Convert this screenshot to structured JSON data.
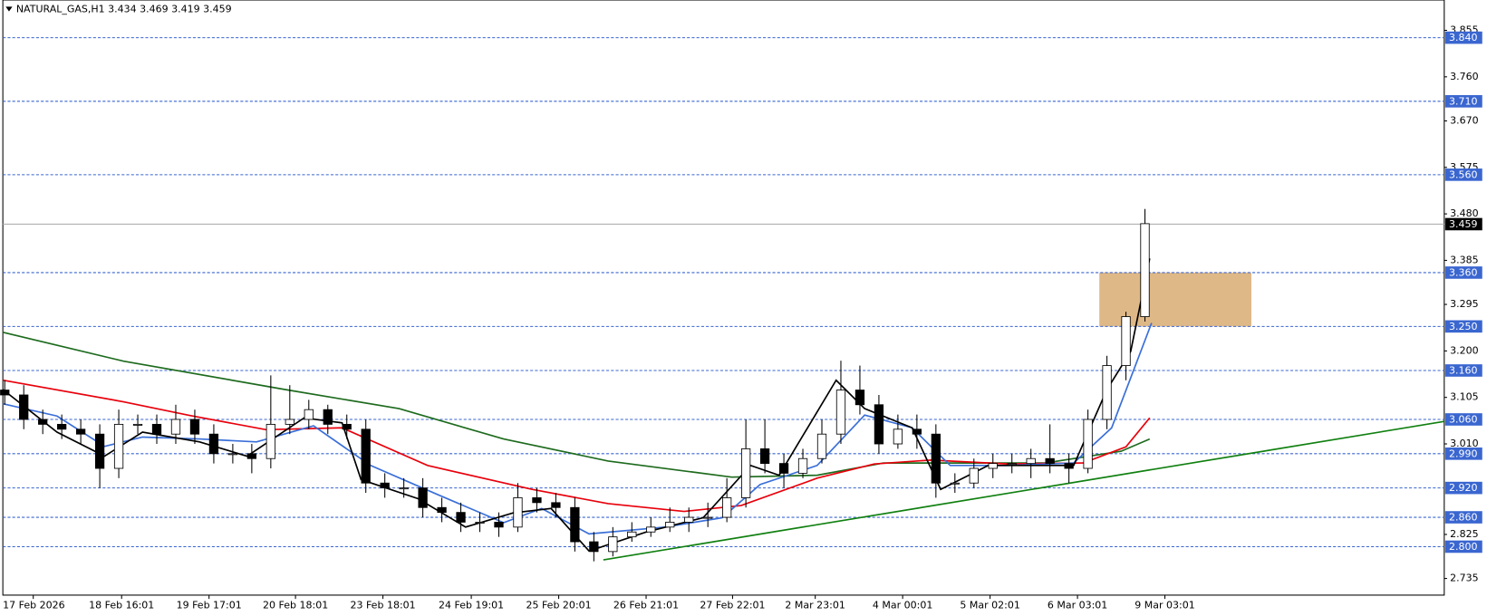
{
  "chart_data": {
    "type": "candlestick",
    "title": "NATURAL_GAS,H1  3.434 3.469 3.419 3.459",
    "xlim": [
      -0.1,
      75.75
    ],
    "ylim": [
      2.701,
      3.917
    ],
    "xticks": [
      {
        "value": 1.5,
        "label": "17 Feb 2026"
      },
      {
        "value": 6.15,
        "label": "18 Feb 16:01"
      },
      {
        "value": 10.75,
        "label": "19 Feb 17:01"
      },
      {
        "value": 15.3,
        "label": "20 Feb 18:01"
      },
      {
        "value": 19.9,
        "label": "23 Feb 18:01"
      },
      {
        "value": 24.55,
        "label": "24 Feb 19:01"
      },
      {
        "value": 29.15,
        "label": "25 Feb 20:01"
      },
      {
        "value": 33.75,
        "label": "26 Feb 21:01"
      },
      {
        "value": 38.3,
        "label": "27 Feb 22:01"
      },
      {
        "value": 42.65,
        "label": "2 Mar 23:01"
      },
      {
        "value": 47.25,
        "label": "4 Mar 00:01"
      },
      {
        "value": 51.85,
        "label": "5 Mar 02:01"
      },
      {
        "value": 56.45,
        "label": "6 Mar 03:01"
      },
      {
        "value": 61.05,
        "label": "9 Mar 03:01"
      }
    ],
    "yticks": [
      3.855,
      {
        "value": 3.76,
        "label": "3.760"
      },
      {
        "value": 3.67,
        "label": "3.670"
      },
      3.575,
      {
        "value": 3.48,
        "label": "3.480"
      },
      3.385,
      3.295,
      {
        "value": 3.2,
        "label": "3.200"
      },
      3.105,
      {
        "value": 3.01,
        "label": "3.010"
      },
      2.825,
      2.735
    ],
    "levels": [
      {
        "value": 3.84,
        "label": "3.840"
      },
      {
        "value": 3.71,
        "label": "3.710"
      },
      {
        "value": 3.56,
        "label": "3.560"
      },
      {
        "value": 3.36,
        "label": "3.360"
      },
      {
        "value": 3.25,
        "label": "3.250"
      },
      {
        "value": 3.16,
        "label": "3.160"
      },
      {
        "value": 3.06,
        "label": "3.060"
      },
      {
        "value": 2.99,
        "label": "2.990"
      },
      {
        "value": 2.92,
        "label": "2.920"
      },
      {
        "value": 2.86,
        "label": "2.860"
      },
      {
        "value": 2.8,
        "label": "2.800"
      }
    ],
    "level_color": "#3a66d0",
    "last_price": 3.459,
    "open": [
      3.12,
      3.11,
      3.06,
      3.05,
      3.04,
      3.03,
      2.96,
      3.05,
      3.05,
      3.03,
      3.06,
      3.03,
      2.99,
      2.99,
      2.98,
      3.05,
      3.06,
      3.08,
      3.05,
      3.04,
      2.93,
      2.92,
      2.92,
      2.88,
      2.87,
      2.85,
      2.85,
      2.84,
      2.9,
      2.89,
      2.88,
      2.81,
      2.79,
      2.82,
      2.83,
      2.84,
      2.85,
      2.86,
      2.86,
      2.9,
      3.0,
      2.97,
      2.95,
      2.98,
      3.03,
      3.12,
      3.09,
      3.01,
      3.04,
      3.03,
      2.93,
      2.93,
      2.96,
      2.97,
      2.97,
      2.98,
      2.97,
      2.96,
      3.06,
      3.17,
      3.27
    ],
    "high": [
      3.14,
      3.13,
      3.08,
      3.07,
      3.06,
      3.05,
      3.08,
      3.07,
      3.07,
      3.09,
      3.08,
      3.05,
      3.01,
      3.01,
      3.15,
      3.13,
      3.1,
      3.09,
      3.07,
      3.06,
      2.95,
      2.94,
      2.94,
      2.9,
      2.89,
      2.87,
      2.87,
      2.93,
      2.92,
      2.91,
      2.9,
      2.83,
      2.84,
      2.85,
      2.86,
      2.88,
      2.88,
      2.89,
      2.94,
      3.06,
      3.06,
      2.99,
      3.0,
      3.06,
      3.18,
      3.17,
      3.11,
      3.07,
      3.07,
      3.05,
      2.95,
      2.98,
      2.99,
      2.99,
      3.0,
      3.05,
      2.99,
      3.08,
      3.19,
      3.28,
      3.49
    ],
    "low": [
      3.09,
      3.04,
      3.03,
      3.02,
      3.01,
      2.92,
      2.94,
      3.03,
      3.01,
      3.01,
      3.01,
      2.97,
      2.97,
      2.95,
      2.96,
      3.03,
      3.04,
      3.03,
      3.02,
      2.91,
      2.9,
      2.9,
      2.86,
      2.85,
      2.83,
      2.83,
      2.82,
      2.83,
      2.87,
      2.86,
      2.79,
      2.77,
      2.78,
      2.81,
      2.82,
      2.83,
      2.83,
      2.84,
      2.85,
      2.88,
      2.95,
      2.92,
      2.94,
      2.97,
      3.01,
      3.07,
      2.99,
      3.0,
      3.0,
      2.9,
      2.91,
      2.92,
      2.94,
      2.95,
      2.94,
      2.95,
      2.93,
      2.95,
      3.04,
      3.14,
      3.26
    ],
    "close": [
      3.11,
      3.06,
      3.05,
      3.04,
      3.03,
      2.96,
      3.05,
      3.05,
      3.03,
      3.06,
      3.03,
      2.99,
      2.99,
      2.98,
      3.05,
      3.06,
      3.08,
      3.05,
      3.04,
      2.93,
      2.92,
      2.92,
      2.88,
      2.87,
      2.85,
      2.85,
      2.84,
      2.9,
      2.89,
      2.88,
      2.81,
      2.79,
      2.82,
      2.83,
      2.84,
      2.85,
      2.86,
      2.86,
      2.9,
      3.0,
      2.97,
      2.95,
      2.98,
      3.03,
      3.12,
      3.09,
      3.01,
      3.04,
      3.03,
      2.93,
      2.93,
      2.96,
      2.97,
      2.97,
      2.98,
      2.97,
      2.96,
      3.06,
      3.17,
      3.27,
      3.46
    ],
    "zone": {
      "xlim": [
        57.6,
        65.6
      ],
      "ylim": [
        3.25,
        3.36
      ],
      "color": "#deb887"
    },
    "lines": [
      {
        "color": "#1e6b1e",
        "x": [
          -0.1,
          6.25,
          14.75,
          20.75,
          26.25,
          31.75,
          38.25,
          42.75,
          46.25,
          49.75,
          54.75,
          58.75,
          60.25
        ],
        "values": [
          3.238,
          3.179,
          3.121,
          3.082,
          3.02,
          2.975,
          2.942,
          2.946,
          2.971,
          2.971,
          2.971,
          2.995,
          3.02
        ]
      },
      {
        "color": "#e8000b",
        "x": [
          -0.1,
          6.25,
          9.75,
          13.75,
          17.75,
          22.25,
          27.75,
          31.75,
          35.75,
          38.75,
          42.75,
          45.75,
          48.75,
          52.75,
          56.75,
          59,
          60.25
        ],
        "values": [
          3.14,
          3.096,
          3.068,
          3.039,
          3.043,
          2.966,
          2.917,
          2.888,
          2.872,
          2.884,
          2.94,
          2.969,
          2.977,
          2.969,
          2.971,
          3.004,
          3.063
        ]
      },
      {
        "color": "#3a6fd8",
        "x": [
          -0.1,
          2.75,
          5.25,
          7.25,
          10.25,
          13.25,
          16.25,
          19.25,
          22.75,
          26.25,
          28.25,
          30.75,
          34.75,
          37.75,
          39.75,
          42.75,
          45.25,
          47.75,
          49.75,
          52.75,
          56.25,
          58.25,
          60.35
        ],
        "values": [
          3.092,
          3.067,
          3.005,
          3.024,
          3.02,
          3.014,
          3.047,
          2.966,
          2.907,
          2.849,
          2.878,
          2.826,
          2.84,
          2.859,
          2.927,
          2.966,
          3.069,
          3.043,
          2.966,
          2.966,
          2.971,
          3.043,
          3.257
        ]
      },
      {
        "color": "#000000",
        "x": [
          -0.1,
          2.75,
          5.25,
          7.25,
          10.25,
          12.75,
          15.75,
          17.75,
          18.75,
          21.75,
          24.25,
          26.75,
          28.75,
          30.75,
          33.75,
          36.75,
          39.25,
          40.75,
          43.75,
          45.25,
          47.75,
          49.25,
          51.75,
          54.25,
          56.25,
          58,
          59.25,
          60.25
        ],
        "values": [
          3.121,
          3.034,
          2.985,
          3.034,
          3.014,
          2.985,
          3.063,
          3.053,
          2.937,
          2.898,
          2.84,
          2.869,
          2.878,
          2.791,
          2.83,
          2.859,
          2.966,
          2.946,
          3.14,
          3.082,
          3.043,
          2.917,
          2.966,
          2.966,
          2.966,
          3.121,
          3.199,
          3.389
        ]
      },
      {
        "color": "#108010",
        "x": [
          31.5,
          75.75
        ],
        "values": [
          2.773,
          3.056
        ]
      }
    ]
  }
}
